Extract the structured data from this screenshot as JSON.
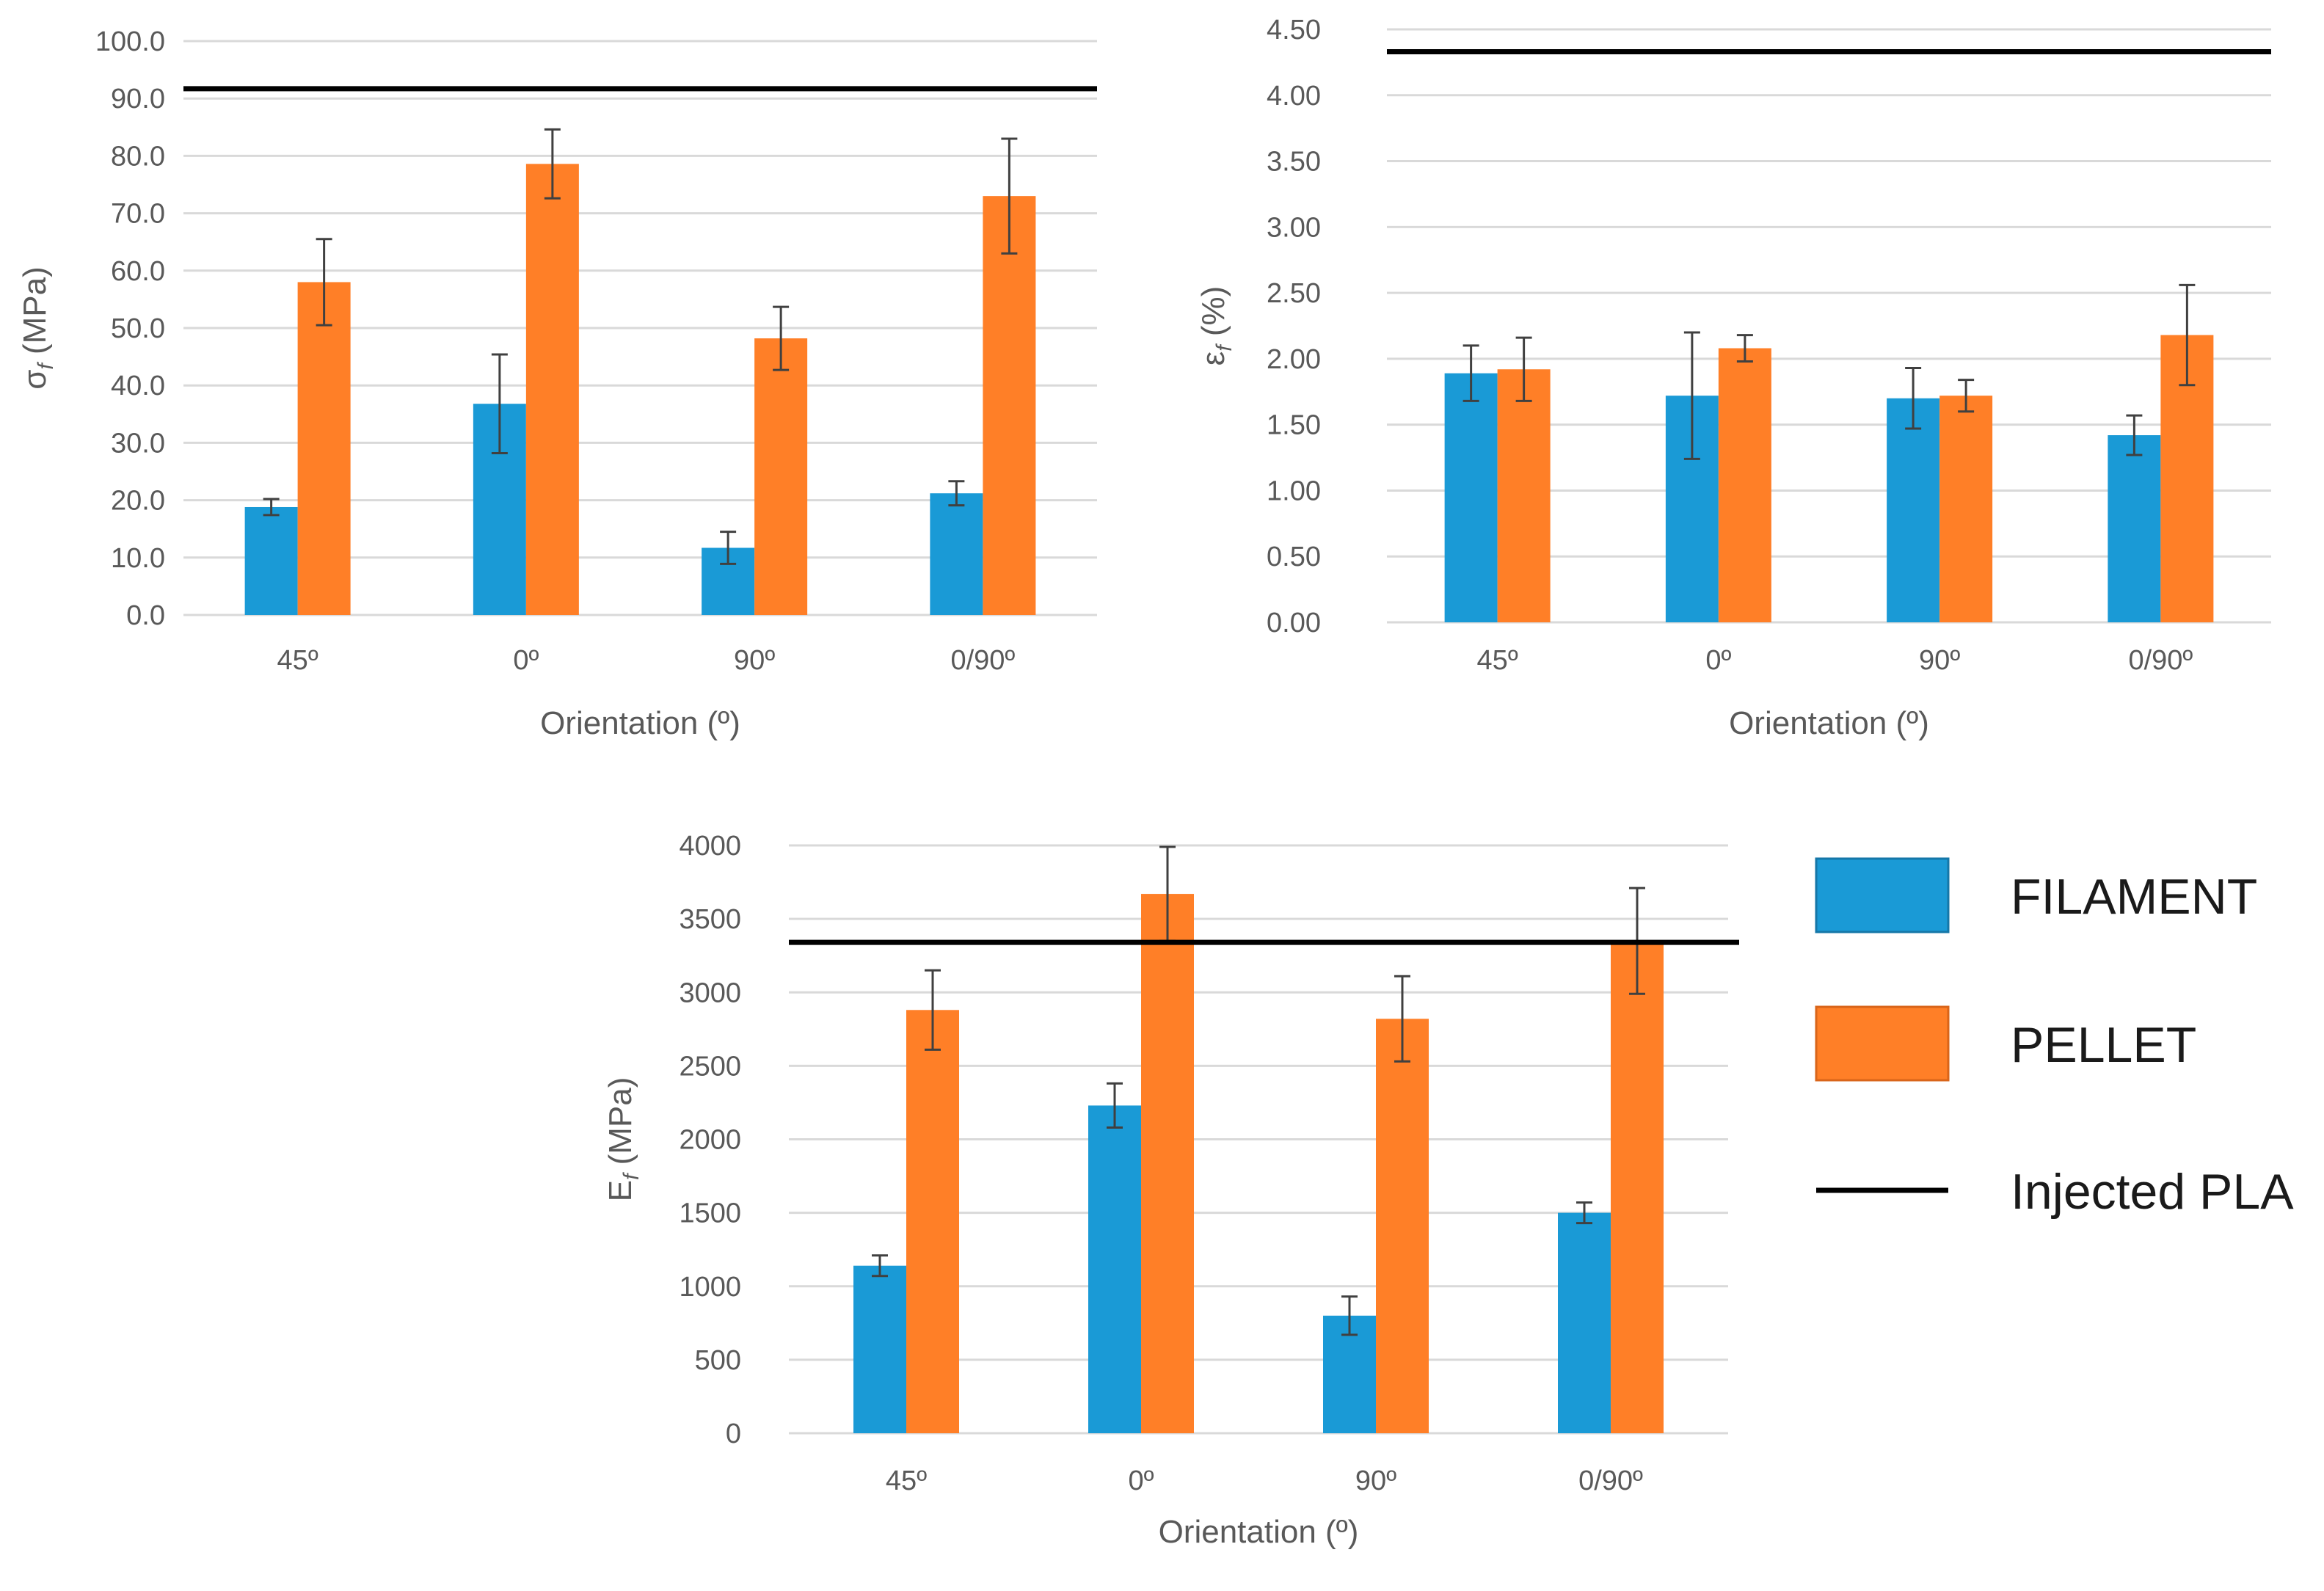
{
  "colors": {
    "filament": "#1a9ad6",
    "pellet": "#ff7f27",
    "reference": "#000000",
    "error_bar": "#404040"
  },
  "legend": {
    "filament": "FILAMENT",
    "pellet": "PELLET",
    "reference": "Injected PLA"
  },
  "chart_data": [
    {
      "type": "bar",
      "title": "",
      "xlabel": "Orientation (º)",
      "ylabel_symbol": "σ",
      "ylabel_sub": "f",
      "ylabel_unit": " (MPa)",
      "categories": [
        "45º",
        "0º",
        "90º",
        "0/90º"
      ],
      "ylim": [
        0,
        100
      ],
      "tick_step": 10,
      "tick_decimals": 1,
      "series": [
        {
          "name": "FILAMENT",
          "values": [
            18.8,
            36.8,
            11.7,
            21.2
          ],
          "errors": [
            1.4,
            8.6,
            2.8,
            2.1
          ]
        },
        {
          "name": "PELLET",
          "values": [
            58.0,
            78.6,
            48.2,
            73.0
          ],
          "errors": [
            7.5,
            6.0,
            5.5,
            10.0
          ]
        }
      ],
      "reference": {
        "name": "Injected PLA",
        "value": 91.7
      }
    },
    {
      "type": "bar",
      "title": "",
      "xlabel": "Orientation (º)",
      "ylabel_symbol": "ε",
      "ylabel_sub": "f",
      "ylabel_unit": " (%)",
      "categories": [
        "45º",
        "0º",
        "90º",
        "0/90º"
      ],
      "ylim": [
        0,
        4.5
      ],
      "tick_step": 0.5,
      "tick_decimals": 2,
      "series": [
        {
          "name": "FILAMENT",
          "values": [
            1.89,
            1.72,
            1.7,
            1.42
          ],
          "errors": [
            0.21,
            0.48,
            0.23,
            0.15
          ]
        },
        {
          "name": "PELLET",
          "values": [
            1.92,
            2.08,
            1.72,
            2.18
          ],
          "errors": [
            0.24,
            0.1,
            0.12,
            0.38
          ]
        }
      ],
      "reference": {
        "name": "Injected PLA",
        "value": 4.33
      }
    },
    {
      "type": "bar",
      "title": "",
      "xlabel": "Orientation (º)",
      "ylabel_symbol": "E",
      "ylabel_sub": "f",
      "ylabel_unit": " (MPa)",
      "categories": [
        "45º",
        "0º",
        "90º",
        "0/90º"
      ],
      "ylim": [
        0,
        4000
      ],
      "tick_step": 500,
      "tick_decimals": 0,
      "series": [
        {
          "name": "FILAMENT",
          "values": [
            1140,
            2230,
            800,
            1500
          ],
          "errors": [
            70,
            150,
            130,
            70
          ]
        },
        {
          "name": "PELLET",
          "values": [
            2880,
            3670,
            2820,
            3350
          ],
          "errors": [
            270,
            320,
            290,
            360
          ]
        }
      ],
      "reference": {
        "name": "Injected PLA",
        "value": 3340
      }
    }
  ]
}
